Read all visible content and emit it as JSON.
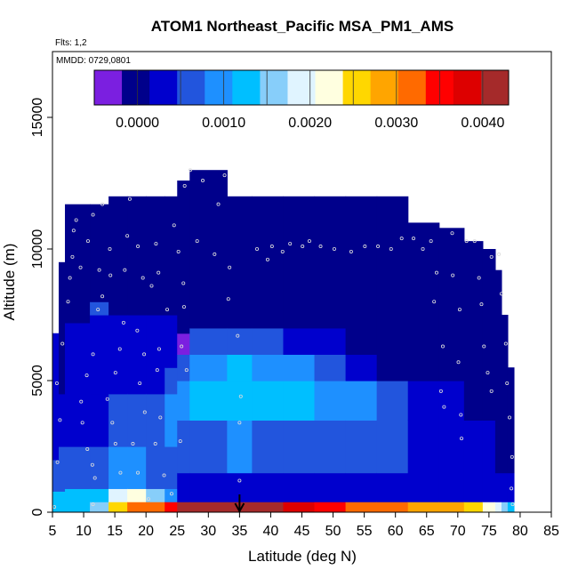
{
  "chart_data": {
    "type": "heatmap",
    "title": "ATOM1 Northeast_Pacific MSA_PM1_AMS",
    "flights_label": "Flts: 1,2",
    "date_label": "MMDD: 0729,0801",
    "xlabel": "Latitude (deg N)",
    "ylabel": "Altitude (m)",
    "xlim": [
      5,
      85
    ],
    "ylim": [
      0,
      17500
    ],
    "x_ticks": [
      5,
      10,
      15,
      20,
      25,
      30,
      35,
      40,
      45,
      50,
      55,
      60,
      65,
      70,
      75,
      80,
      85
    ],
    "y_ticks": [
      0,
      5000,
      10000,
      15000
    ],
    "grid": false,
    "colorbar": {
      "placement": "top-inset",
      "range": [
        -0.0005,
        0.0043
      ],
      "ticks": [
        0.0,
        0.001,
        0.002,
        0.003,
        0.004
      ],
      "tick_labels": [
        "0.0000",
        "0.0010",
        "0.0020",
        "0.0030",
        "0.0040"
      ],
      "colors": [
        "#7b1fe0",
        "#00008b",
        "#0000cd",
        "#2255dd",
        "#1e90ff",
        "#00bfff",
        "#87cefa",
        "#e0f4ff",
        "#ffffe0",
        "#ffd700",
        "#ffa500",
        "#ff6a00",
        "#ff0000",
        "#dd0000",
        "#a52a2a"
      ]
    },
    "columns": [
      {
        "x": [
          5,
          6
        ],
        "top": 6800,
        "bands": [
          [
            0,
            800,
            0.0011
          ],
          [
            800,
            2000,
            0.0007
          ],
          [
            2000,
            3800,
            0.0004
          ],
          [
            3800,
            6800,
            0.0002
          ]
        ]
      },
      {
        "x": [
          6,
          7
        ],
        "top": 9500,
        "bands": [
          [
            0,
            800,
            0.0011
          ],
          [
            800,
            2500,
            0.0007
          ],
          [
            2500,
            4500,
            0.0004
          ],
          [
            4500,
            9500,
            0.0001
          ]
        ]
      },
      {
        "x": [
          7,
          11
        ],
        "top": 11700,
        "bands": [
          [
            0,
            900,
            0.0012
          ],
          [
            900,
            2500,
            0.0007
          ],
          [
            2500,
            4200,
            0.0004
          ],
          [
            4200,
            7200,
            0.0002
          ],
          [
            7200,
            11700,
            0.0001
          ]
        ]
      },
      {
        "x": [
          11,
          14
        ],
        "top": 11700,
        "bands": [
          [
            0,
            400,
            0.0015
          ],
          [
            400,
            900,
            0.0013
          ],
          [
            900,
            2500,
            0.0007
          ],
          [
            2500,
            4500,
            0.0004
          ],
          [
            4500,
            7500,
            0.0003
          ],
          [
            7500,
            8000,
            0.0006
          ],
          [
            8000,
            11700,
            0.0001
          ]
        ]
      },
      {
        "x": [
          14,
          17
        ],
        "top": 12000,
        "bands": [
          [
            0,
            400,
            0.0026
          ],
          [
            400,
            900,
            0.0018
          ],
          [
            900,
            2500,
            0.0008
          ],
          [
            2500,
            4500,
            0.0005
          ],
          [
            4500,
            7500,
            0.0002
          ],
          [
            7500,
            12000,
            0.0001
          ]
        ]
      },
      {
        "x": [
          17,
          20
        ],
        "top": 12000,
        "bands": [
          [
            0,
            400,
            0.0031
          ],
          [
            400,
            900,
            0.0021
          ],
          [
            900,
            2500,
            0.0008
          ],
          [
            2500,
            4500,
            0.0006
          ],
          [
            4500,
            7500,
            0.0002
          ],
          [
            7500,
            12000,
            0.0001
          ]
        ]
      },
      {
        "x": [
          20,
          23
        ],
        "top": 12000,
        "bands": [
          [
            0,
            400,
            0.0033
          ],
          [
            400,
            900,
            0.0016
          ],
          [
            900,
            2500,
            0.0006
          ],
          [
            2500,
            4500,
            0.0007
          ],
          [
            4500,
            7500,
            0.0003
          ],
          [
            7500,
            12000,
            0.0001
          ]
        ]
      },
      {
        "x": [
          23,
          25
        ],
        "top": 12000,
        "bands": [
          [
            0,
            400,
            0.0036
          ],
          [
            400,
            900,
            0.001
          ],
          [
            900,
            2500,
            0.0005
          ],
          [
            2500,
            4500,
            0.0009
          ],
          [
            4500,
            5500,
            0.0006
          ],
          [
            5500,
            7500,
            0.0003
          ],
          [
            7500,
            12000,
            0.0001
          ]
        ]
      },
      {
        "x": [
          25,
          27
        ],
        "top": 12600,
        "bands": [
          [
            0,
            400,
            0.0042
          ],
          [
            400,
            1500,
            0.0004
          ],
          [
            1500,
            3500,
            0.0006
          ],
          [
            3500,
            5000,
            0.001
          ],
          [
            5000,
            6000,
            0.0007
          ],
          [
            6000,
            6800,
            -0.0004
          ],
          [
            6800,
            12600,
            0.0001
          ]
        ]
      },
      {
        "x": [
          27,
          33
        ],
        "top": 13000,
        "bands": [
          [
            0,
            400,
            0.0042
          ],
          [
            400,
            1500,
            0.0004
          ],
          [
            1500,
            3500,
            0.0007
          ],
          [
            3500,
            5000,
            0.0012
          ],
          [
            5000,
            6000,
            0.001
          ],
          [
            6000,
            7000,
            0.0005
          ],
          [
            7000,
            13000,
            0.0001
          ]
        ]
      },
      {
        "x": [
          33,
          37
        ],
        "top": 12000,
        "bands": [
          [
            0,
            400,
            0.0043
          ],
          [
            400,
            1500,
            0.0004
          ],
          [
            1500,
            3500,
            0.0008
          ],
          [
            3500,
            5000,
            0.0012
          ],
          [
            5000,
            6000,
            0.0011
          ],
          [
            6000,
            7000,
            0.0006
          ],
          [
            7000,
            12000,
            0.0001
          ]
        ]
      },
      {
        "x": [
          37,
          42
        ],
        "top": 12000,
        "bands": [
          [
            0,
            400,
            0.004
          ],
          [
            400,
            1500,
            0.0004
          ],
          [
            1500,
            3500,
            0.0007
          ],
          [
            3500,
            5000,
            0.0012
          ],
          [
            5000,
            6000,
            0.001
          ],
          [
            6000,
            7000,
            0.0005
          ],
          [
            7000,
            12000,
            0.0001
          ]
        ]
      },
      {
        "x": [
          42,
          47
        ],
        "top": 12000,
        "bands": [
          [
            0,
            400,
            0.0038
          ],
          [
            400,
            1500,
            0.0004
          ],
          [
            1500,
            3500,
            0.0007
          ],
          [
            3500,
            5000,
            0.0011
          ],
          [
            5000,
            6000,
            0.0008
          ],
          [
            6000,
            7000,
            0.0004
          ],
          [
            7000,
            12000,
            0.0001
          ]
        ]
      },
      {
        "x": [
          47,
          52
        ],
        "top": 12000,
        "bands": [
          [
            0,
            400,
            0.0035
          ],
          [
            400,
            1500,
            0.0004
          ],
          [
            1500,
            3500,
            0.0006
          ],
          [
            3500,
            5000,
            0.001
          ],
          [
            5000,
            6000,
            0.0006
          ],
          [
            6000,
            7000,
            0.0003
          ],
          [
            7000,
            12000,
            0.0001
          ]
        ]
      },
      {
        "x": [
          52,
          57
        ],
        "top": 12000,
        "bands": [
          [
            0,
            400,
            0.0033
          ],
          [
            400,
            1500,
            0.0003
          ],
          [
            1500,
            3500,
            0.0005
          ],
          [
            3500,
            5000,
            0.0008
          ],
          [
            5000,
            6000,
            0.0004
          ],
          [
            6000,
            12000,
            0.0001
          ]
        ]
      },
      {
        "x": [
          57,
          62
        ],
        "top": 12000,
        "bands": [
          [
            0,
            400,
            0.0031
          ],
          [
            400,
            1500,
            0.0003
          ],
          [
            1500,
            3500,
            0.0005
          ],
          [
            3500,
            5000,
            0.0006
          ],
          [
            5000,
            12000,
            0.0001
          ]
        ]
      },
      {
        "x": [
          62,
          67
        ],
        "top": 11000,
        "bands": [
          [
            0,
            400,
            0.003
          ],
          [
            400,
            1500,
            0.0003
          ],
          [
            1500,
            3500,
            0.0004
          ],
          [
            3500,
            5000,
            0.0004
          ],
          [
            5000,
            11000,
            0.0001
          ]
        ]
      },
      {
        "x": [
          67,
          71
        ],
        "top": 10800,
        "bands": [
          [
            0,
            400,
            0.0027
          ],
          [
            400,
            1500,
            0.0003
          ],
          [
            1500,
            3500,
            0.0004
          ],
          [
            3500,
            5000,
            0.0003
          ],
          [
            5000,
            10800,
            0.0001
          ]
        ]
      },
      {
        "x": [
          71,
          74
        ],
        "top": 10300,
        "bands": [
          [
            0,
            400,
            0.0024
          ],
          [
            400,
            1500,
            0.0002
          ],
          [
            1500,
            3500,
            0.0003
          ],
          [
            3500,
            10300,
            0.0001
          ]
        ]
      },
      {
        "x": [
          74,
          76
        ],
        "top": 10000,
        "bands": [
          [
            0,
            400,
            0.0021
          ],
          [
            400,
            1500,
            0.0002
          ],
          [
            1500,
            3500,
            0.0003
          ],
          [
            3500,
            10000,
            0.0001
          ]
        ]
      },
      {
        "x": [
          76,
          77
        ],
        "top": 9200,
        "bands": [
          [
            0,
            400,
            0.0019
          ],
          [
            400,
            1500,
            0.0002
          ],
          [
            1500,
            9200,
            0.0001
          ]
        ]
      },
      {
        "x": [
          77,
          78
        ],
        "top": 7500,
        "bands": [
          [
            0,
            400,
            0.0016
          ],
          [
            400,
            1500,
            0.0003
          ],
          [
            1500,
            7500,
            0.0001
          ]
        ]
      },
      {
        "x": [
          78,
          79
        ],
        "top": 5500,
        "bands": [
          [
            0,
            400,
            0.0012
          ],
          [
            400,
            1500,
            0.0003
          ],
          [
            1500,
            5500,
            0.0001
          ]
        ]
      }
    ],
    "flight_points": [
      [
        5.3,
        200
      ],
      [
        5.8,
        1900
      ],
      [
        6.2,
        3500
      ],
      [
        5.7,
        4900
      ],
      [
        6.6,
        6400
      ],
      [
        7.5,
        8000
      ],
      [
        7.8,
        8900
      ],
      [
        8.2,
        9700
      ],
      [
        9.5,
        9300
      ],
      [
        8.4,
        10700
      ],
      [
        8.8,
        11100
      ],
      [
        10.7,
        10300
      ],
      [
        11.5,
        11300
      ],
      [
        13.0,
        11700
      ],
      [
        12.5,
        9200
      ],
      [
        14.2,
        10000
      ],
      [
        12.3,
        7700
      ],
      [
        11.5,
        6000
      ],
      [
        10.5,
        5200
      ],
      [
        9.6,
        4200
      ],
      [
        9.8,
        3400
      ],
      [
        10.6,
        2400
      ],
      [
        11.4,
        1800
      ],
      [
        11.8,
        1300
      ],
      [
        11.5,
        300
      ],
      [
        14.3,
        9000
      ],
      [
        13.0,
        8200
      ],
      [
        16.6,
        9200
      ],
      [
        16.4,
        7200
      ],
      [
        15.8,
        6200
      ],
      [
        15.1,
        5300
      ],
      [
        13.8,
        4300
      ],
      [
        14.6,
        3400
      ],
      [
        15.1,
        2600
      ],
      [
        15.9,
        1500
      ],
      [
        17.4,
        11900
      ],
      [
        17.0,
        10500
      ],
      [
        18.7,
        10100
      ],
      [
        19.5,
        8900
      ],
      [
        20.9,
        8600
      ],
      [
        18.6,
        6900
      ],
      [
        19.7,
        6000
      ],
      [
        19.0,
        4900
      ],
      [
        19.8,
        3800
      ],
      [
        17.9,
        2600
      ],
      [
        18.7,
        1500
      ],
      [
        20.4,
        500
      ],
      [
        21.6,
        10200
      ],
      [
        22.0,
        9100
      ],
      [
        23.4,
        7700
      ],
      [
        22.1,
        6200
      ],
      [
        21.8,
        5400
      ],
      [
        22.3,
        3600
      ],
      [
        21.5,
        2600
      ],
      [
        22.9,
        1400
      ],
      [
        24.1,
        700
      ],
      [
        24.5,
        10900
      ],
      [
        25.2,
        9900
      ],
      [
        26.0,
        8700
      ],
      [
        26.1,
        7800
      ],
      [
        25.7,
        6300
      ],
      [
        26.5,
        5400
      ],
      [
        25.5,
        2700
      ],
      [
        26.2,
        12400
      ],
      [
        27.1,
        13000
      ],
      [
        29.1,
        12600
      ],
      [
        31.6,
        11700
      ],
      [
        32.6,
        12800
      ],
      [
        28.2,
        10300
      ],
      [
        31.0,
        9800
      ],
      [
        33.4,
        9300
      ],
      [
        33.2,
        8100
      ],
      [
        34.7,
        6700
      ],
      [
        35.2,
        4400
      ],
      [
        35.0,
        3400
      ],
      [
        35.0,
        1200
      ],
      [
        37.8,
        10000
      ],
      [
        39.5,
        9600
      ],
      [
        40.2,
        10100
      ],
      [
        41.9,
        9900
      ],
      [
        43.1,
        10200
      ],
      [
        45.1,
        10100
      ],
      [
        46.2,
        10300
      ],
      [
        48.0,
        10100
      ],
      [
        50.2,
        10000
      ],
      [
        52.9,
        9900
      ],
      [
        55.1,
        10100
      ],
      [
        57.2,
        10100
      ],
      [
        59.3,
        10000
      ],
      [
        61.0,
        10400
      ],
      [
        62.9,
        10400
      ],
      [
        64.4,
        10000
      ],
      [
        65.7,
        10300
      ],
      [
        66.6,
        9100
      ],
      [
        66.2,
        8000
      ],
      [
        67.6,
        6300
      ],
      [
        67.3,
        4600
      ],
      [
        67.8,
        4000
      ],
      [
        69.1,
        10600
      ],
      [
        69.2,
        9000
      ],
      [
        70.3,
        7700
      ],
      [
        70.1,
        5700
      ],
      [
        70.5,
        3700
      ],
      [
        70.6,
        2800
      ],
      [
        71.4,
        10300
      ],
      [
        72.7,
        10300
      ],
      [
        73.4,
        8900
      ],
      [
        73.8,
        7900
      ],
      [
        74.2,
        6300
      ],
      [
        74.8,
        5300
      ],
      [
        75.4,
        4600
      ],
      [
        75.4,
        9700
      ],
      [
        76.6,
        9800
      ],
      [
        77.0,
        8300
      ],
      [
        77.7,
        6400
      ],
      [
        77.9,
        4900
      ],
      [
        78.3,
        3600
      ],
      [
        78.7,
        2100
      ],
      [
        78.6,
        900
      ],
      [
        78.8,
        300
      ]
    ],
    "marker": {
      "x": 35,
      "style": "down-arrow"
    }
  }
}
